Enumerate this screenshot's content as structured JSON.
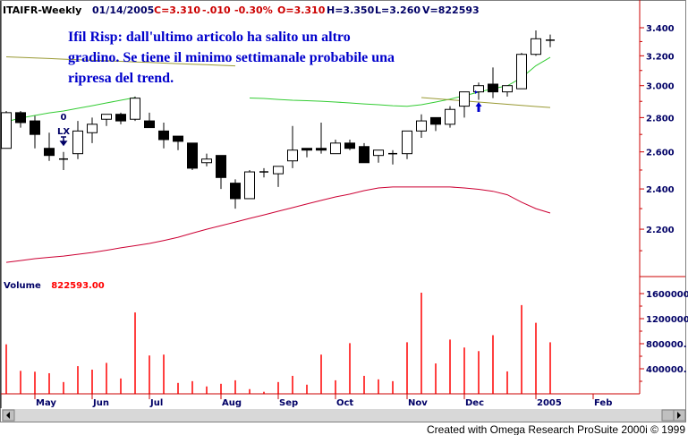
{
  "header": {
    "symbol": "ITAIFR-Weekly",
    "date": "01/14/2005",
    "close": "C=3.310",
    "change": "-.010",
    "change_pct": "-0.30%",
    "open": "O=3.310",
    "high": "H=3.350",
    "low": "L=3.260",
    "volume": "V=822593"
  },
  "annotation": {
    "lines": [
      "Ifil Risp: dall'ultimo articolo ha salito un altro",
      "gradino. Se tiene il minimo settimanale probabile una",
      "ripresa del trend."
    ]
  },
  "signal": {
    "count": "0",
    "label": "LX"
  },
  "volume_panel": {
    "label": "Volume",
    "value": "822593.00"
  },
  "footer": "Created with Omega Research ProSuite 2000i © 1999",
  "colors": {
    "up_body": "#ffffff",
    "down_body": "#000000",
    "axis": "#cc0000",
    "axis_text": "#000066",
    "volume": "#ff0000",
    "ma_fast": "#33cc33",
    "ma_slow": "#999933",
    "band_low": "#cc0033",
    "annotation": "#0000cc"
  },
  "chart_data": [
    {
      "type": "candlestick",
      "scale": "log",
      "ylim": [
        2.0,
        3.5
      ],
      "y_ticks": [
        "3.400",
        "3.200",
        "3.000",
        "2.800",
        "2.600",
        "2.400",
        "2.200"
      ],
      "x_ticks": [
        {
          "label": "May",
          "date": "2004-05-07"
        },
        {
          "label": "Jun",
          "date": "2004-06-04"
        },
        {
          "label": "Jul",
          "date": "2004-07-02"
        },
        {
          "label": "Aug",
          "date": "2004-08-06"
        },
        {
          "label": "Sep",
          "date": "2004-09-03"
        },
        {
          "label": "Oct",
          "date": "2004-10-01"
        },
        {
          "label": "Nov",
          "date": "2004-11-05"
        },
        {
          "label": "Dec",
          "date": "2004-12-03"
        },
        {
          "label": "2005",
          "date": "2005-01-07"
        },
        {
          "label": "Feb",
          "date": "2005-02-04"
        }
      ],
      "dates": [
        "2004-04-23",
        "2004-04-30",
        "2004-05-07",
        "2004-05-14",
        "2004-05-21",
        "2004-05-28",
        "2004-06-04",
        "2004-06-11",
        "2004-06-18",
        "2004-06-25",
        "2004-07-02",
        "2004-07-09",
        "2004-07-16",
        "2004-07-23",
        "2004-07-30",
        "2004-08-06",
        "2004-08-13",
        "2004-08-20",
        "2004-08-27",
        "2004-09-03",
        "2004-09-10",
        "2004-09-17",
        "2004-09-24",
        "2004-10-01",
        "2004-10-08",
        "2004-10-15",
        "2004-10-22",
        "2004-10-29",
        "2004-11-05",
        "2004-11-12",
        "2004-11-19",
        "2004-11-26",
        "2004-12-03",
        "2004-12-10",
        "2004-12-17",
        "2004-12-24",
        "2004-12-31",
        "2005-01-07",
        "2005-01-14"
      ],
      "ohlc": [
        [
          2.62,
          2.84,
          2.62,
          2.83
        ],
        [
          2.83,
          2.84,
          2.74,
          2.77
        ],
        [
          2.78,
          2.81,
          2.62,
          2.7
        ],
        [
          2.62,
          2.71,
          2.55,
          2.58
        ],
        [
          2.56,
          2.6,
          2.5,
          2.56
        ],
        [
          2.59,
          2.78,
          2.56,
          2.72
        ],
        [
          2.71,
          2.8,
          2.65,
          2.76
        ],
        [
          2.79,
          2.82,
          2.75,
          2.82
        ],
        [
          2.82,
          2.83,
          2.76,
          2.78
        ],
        [
          2.79,
          2.93,
          2.78,
          2.92
        ],
        [
          2.78,
          2.83,
          2.74,
          2.74
        ],
        [
          2.72,
          2.77,
          2.62,
          2.67
        ],
        [
          2.69,
          2.69,
          2.61,
          2.66
        ],
        [
          2.65,
          2.65,
          2.5,
          2.51
        ],
        [
          2.54,
          2.59,
          2.52,
          2.56
        ],
        [
          2.58,
          2.58,
          2.4,
          2.46
        ],
        [
          2.43,
          2.45,
          2.3,
          2.35
        ],
        [
          2.35,
          2.5,
          2.35,
          2.49
        ],
        [
          2.49,
          2.51,
          2.46,
          2.49
        ],
        [
          2.48,
          2.52,
          2.41,
          2.52
        ],
        [
          2.55,
          2.75,
          2.51,
          2.61
        ],
        [
          2.62,
          2.62,
          2.57,
          2.61
        ],
        [
          2.62,
          2.77,
          2.59,
          2.61
        ],
        [
          2.59,
          2.67,
          2.59,
          2.65
        ],
        [
          2.65,
          2.67,
          2.61,
          2.62
        ],
        [
          2.63,
          2.65,
          2.54,
          2.54
        ],
        [
          2.58,
          2.61,
          2.54,
          2.61
        ],
        [
          2.59,
          2.61,
          2.53,
          2.59
        ],
        [
          2.59,
          2.72,
          2.56,
          2.72
        ],
        [
          2.72,
          2.82,
          2.68,
          2.78
        ],
        [
          2.8,
          2.8,
          2.72,
          2.76
        ],
        [
          2.76,
          2.87,
          2.74,
          2.85
        ],
        [
          2.87,
          2.96,
          2.8,
          2.96
        ],
        [
          2.96,
          3.02,
          2.91,
          3.0
        ],
        [
          3.01,
          3.12,
          2.92,
          2.96
        ],
        [
          2.96,
          3.0,
          2.93,
          3.0
        ],
        [
          2.98,
          3.22,
          2.98,
          3.21
        ],
        [
          3.21,
          3.38,
          3.2,
          3.32
        ],
        [
          3.31,
          3.35,
          3.26,
          3.31
        ]
      ],
      "overlays": [
        {
          "color": "#33cc33",
          "values": [
            2.775,
            2.797,
            2.813,
            2.829,
            2.84,
            2.857,
            2.873,
            2.89,
            2.907,
            2.924,
            null,
            null,
            null,
            null,
            null,
            null,
            null,
            2.921,
            2.918,
            2.912,
            2.907,
            2.904,
            2.901,
            2.896,
            2.89,
            2.884,
            2.879,
            2.873,
            2.869,
            2.879,
            2.896,
            2.914,
            2.936,
            2.958,
            2.981,
            2.999,
            3.052,
            3.132,
            3.189
          ]
        },
        {
          "color": "#999933",
          "values": [
            3.193,
            3.189,
            3.185,
            3.181,
            3.177,
            3.173,
            3.169,
            3.166,
            3.162,
            3.158,
            3.154,
            3.15,
            3.146,
            3.142,
            3.139,
            3.135,
            3.131,
            null,
            null,
            null,
            null,
            null,
            null,
            null,
            null,
            null,
            null,
            null,
            null,
            2.924,
            2.917,
            2.91,
            2.903,
            2.896,
            2.889,
            2.882,
            2.875,
            2.868,
            2.862
          ]
        },
        {
          "color": "#cc0033",
          "values": [
            2.048,
            2.056,
            2.064,
            2.07,
            2.076,
            2.084,
            2.092,
            2.102,
            2.113,
            2.123,
            2.133,
            2.147,
            2.162,
            2.181,
            2.2,
            2.217,
            2.234,
            2.252,
            2.269,
            2.287,
            2.305,
            2.323,
            2.341,
            2.359,
            2.373,
            2.391,
            2.405,
            2.41,
            2.41,
            2.41,
            2.41,
            2.41,
            2.405,
            2.398,
            2.388,
            2.37,
            2.332,
            2.3,
            2.278
          ]
        }
      ],
      "markers": [
        {
          "type": "exit-arrow-down",
          "label": "LX",
          "date": "2004-05-21"
        },
        {
          "type": "entry-arrow-up",
          "date": "2004-12-10"
        }
      ]
    },
    {
      "type": "bar",
      "title": "Volume",
      "ylim": [
        0,
        1800000
      ],
      "y_ticks": [
        "1600000",
        "1200000",
        "800000.",
        "400000."
      ],
      "y_tick_values": [
        1600000,
        1200000,
        800000,
        400000
      ],
      "values": [
        790000,
        367000,
        353000,
        329000,
        188000,
        442000,
        386000,
        494000,
        245000,
        1299000,
        612000,
        626000,
        174000,
        202000,
        118000,
        160000,
        216000,
        75000,
        33000,
        188000,
        287000,
        146000,
        626000,
        216000,
        809000,
        287000,
        231000,
        202000,
        823000,
        1614000,
        485000,
        866000,
        739000,
        682000,
        936000,
        358000,
        1416000,
        1134000,
        822593
      ]
    }
  ]
}
